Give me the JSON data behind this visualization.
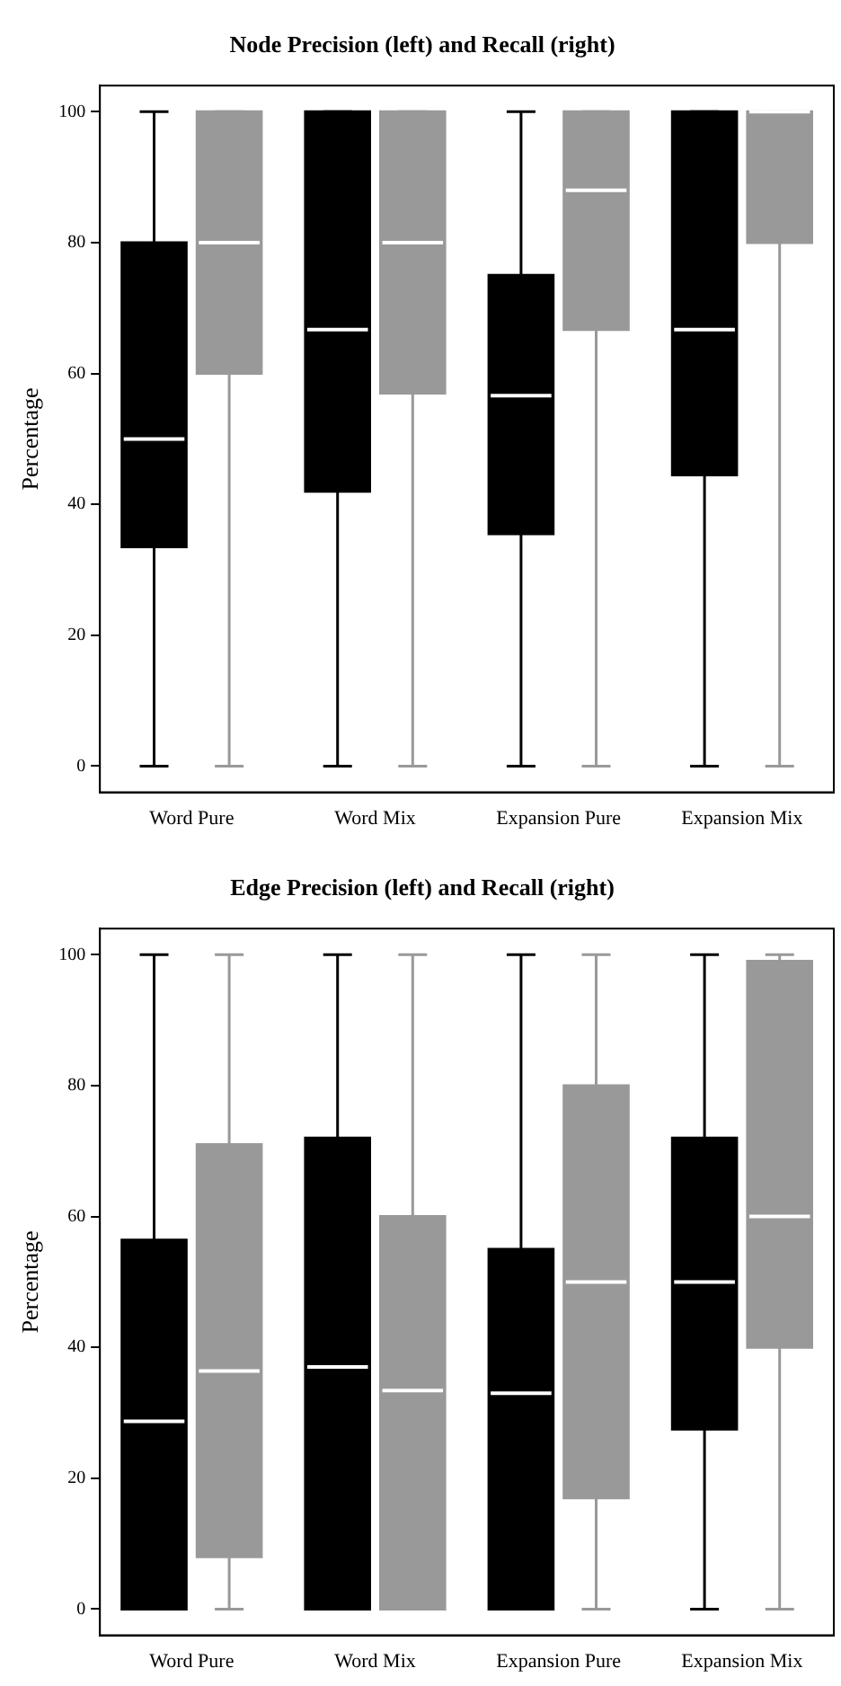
{
  "chart_data": [
    {
      "type": "box",
      "title": "Node Precision (left) and Recall (right)",
      "ylabel": "Percentage",
      "categories": [
        "Word Pure",
        "Word Mix",
        "Expansion Pure",
        "Expansion Mix"
      ],
      "ylim": [
        -4,
        104
      ],
      "yticks": [
        0,
        20,
        40,
        60,
        80,
        100
      ],
      "grid": false,
      "series": [
        {
          "color": "#000000",
          "boxes": [
            {
              "low": 0,
              "q1": 33.5,
              "median": 50,
              "q3": 80,
              "high": 100
            },
            {
              "low": 0,
              "q1": 42,
              "median": 66.7,
              "q3": 100,
              "high": 100
            },
            {
              "low": 0,
              "q1": 35.5,
              "median": 56.6,
              "q3": 75,
              "high": 100
            },
            {
              "low": 0,
              "q1": 44.5,
              "median": 66.7,
              "q3": 100,
              "high": 100
            }
          ]
        },
        {
          "color": "#999999",
          "boxes": [
            {
              "low": 0,
              "q1": 60,
              "median": 80,
              "q3": 100,
              "high": 100
            },
            {
              "low": 0,
              "q1": 57,
              "median": 80,
              "q3": 100,
              "high": 100
            },
            {
              "low": 0,
              "q1": 66.7,
              "median": 88,
              "q3": 100,
              "high": 100
            },
            {
              "low": 0,
              "q1": 80,
              "median": 100,
              "q3": 100,
              "high": 100
            }
          ]
        }
      ]
    },
    {
      "type": "box",
      "title": "Edge Precision (left) and Recall (right)",
      "ylabel": "Percentage",
      "categories": [
        "Word Pure",
        "Word Mix",
        "Expansion Pure",
        "Expansion Mix"
      ],
      "ylim": [
        -4,
        104
      ],
      "yticks": [
        0,
        20,
        40,
        60,
        80,
        100
      ],
      "grid": false,
      "series": [
        {
          "color": "#000000",
          "boxes": [
            {
              "low": 0,
              "q1": 0,
              "median": 28.7,
              "q3": 56.4,
              "high": 100
            },
            {
              "low": 0,
              "q1": 0,
              "median": 37,
              "q3": 72,
              "high": 100
            },
            {
              "low": 0,
              "q1": 0,
              "median": 33,
              "q3": 55,
              "high": 100
            },
            {
              "low": 0,
              "q1": 27.5,
              "median": 50,
              "q3": 72,
              "high": 100
            }
          ]
        },
        {
          "color": "#999999",
          "boxes": [
            {
              "low": 0,
              "q1": 8,
              "median": 36.4,
              "q3": 71,
              "high": 100
            },
            {
              "low": 0,
              "q1": 0,
              "median": 33.4,
              "q3": 60,
              "high": 100
            },
            {
              "low": 0,
              "q1": 17,
              "median": 50,
              "q3": 80,
              "high": 100
            },
            {
              "low": 0,
              "q1": 40,
              "median": 60,
              "q3": 99,
              "high": 100
            }
          ]
        }
      ]
    }
  ]
}
